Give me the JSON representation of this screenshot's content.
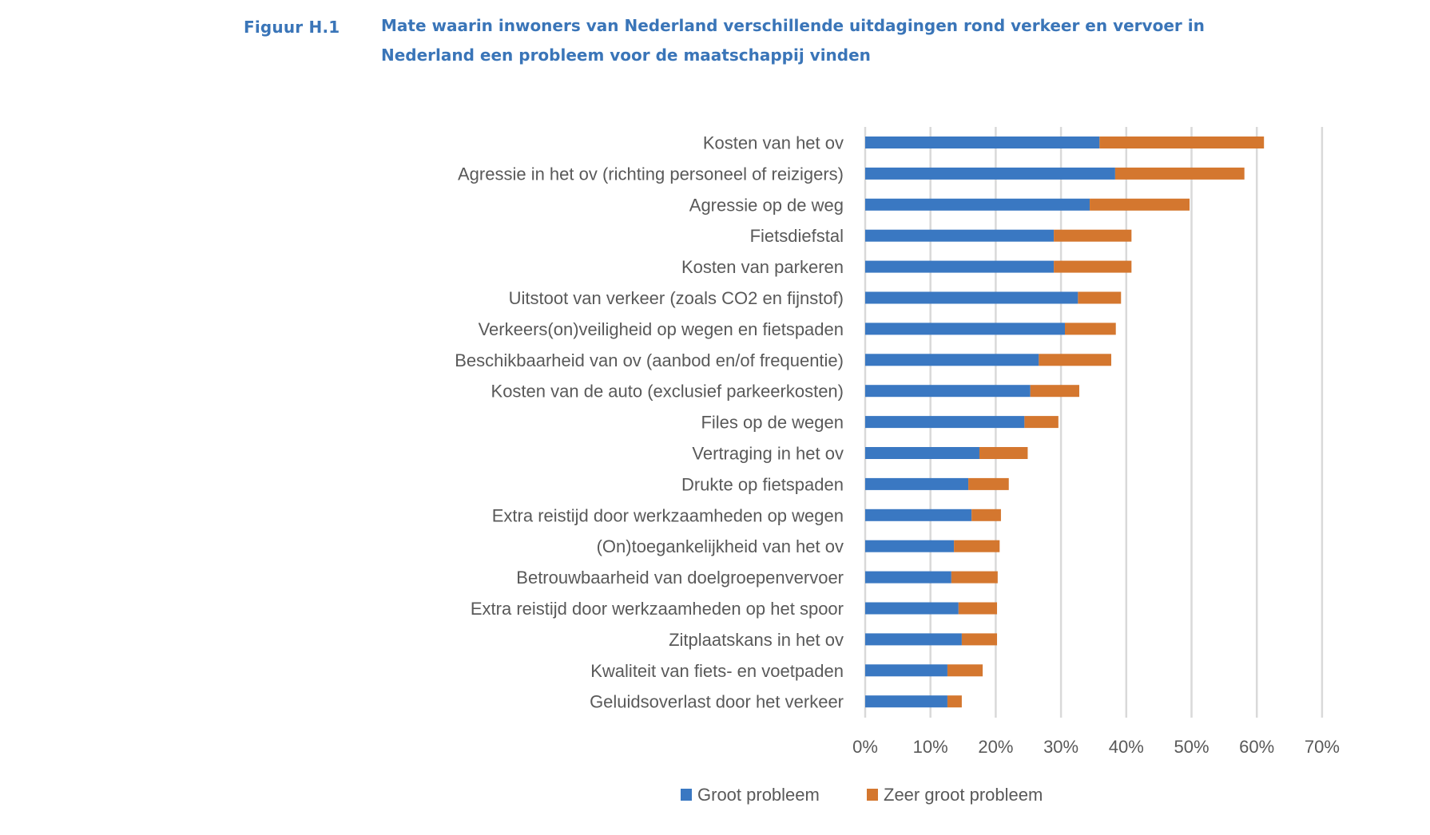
{
  "figure": {
    "number": "Figuur H.1",
    "title": "Mate waarin inwoners van Nederland verschillende uitdagingen rond verkeer en vervoer in Nederland een probleem voor de maatschappij vinden"
  },
  "chart_data": {
    "type": "bar",
    "orientation": "horizontal",
    "stacked": true,
    "title": "Mate waarin inwoners van Nederland verschillende uitdagingen rond verkeer en vervoer in Nederland een probleem voor de maatschappij vinden",
    "xlabel": "",
    "ylabel": "",
    "xlim": [
      0,
      70
    ],
    "x_unit": "%",
    "x_ticks": [
      "0%",
      "10%",
      "20%",
      "30%",
      "40%",
      "50%",
      "60%",
      "70%"
    ],
    "grid": true,
    "legend_position": "bottom",
    "categories": [
      "Kosten van het ov",
      "Agressie in het ov (richting personeel of reizigers)",
      "Agressie op de weg",
      "Fietsdiefstal",
      "Kosten van parkeren",
      "Uitstoot van verkeer (zoals CO2 en fijnstof)",
      "Verkeers(on)veiligheid op wegen en fietspaden",
      "Beschikbaarheid van ov (aanbod en/of frequentie)",
      "Kosten van de auto (exclusief parkeerkosten)",
      "Files op de wegen",
      "Vertraging in het ov",
      "Drukte op fietspaden",
      "Extra reistijd door werkzaamheden op wegen",
      "(On)toegankelijkheid van het ov",
      "Betrouwbaarheid van doelgroepenvervoer",
      "Extra reistijd door werkzaamheden op het spoor",
      "Zitplaatskans in het ov",
      "Kwaliteit van fiets- en voetpaden",
      "Geluidsoverlast door het verkeer"
    ],
    "series": [
      {
        "name": "Groot probleem",
        "color": "#3a78c2",
        "values": [
          35.9,
          38.3,
          34.4,
          28.9,
          28.9,
          32.6,
          30.6,
          26.6,
          25.3,
          24.4,
          17.5,
          15.8,
          16.3,
          13.6,
          13.2,
          14.3,
          14.8,
          12.6,
          12.6
        ]
      },
      {
        "name": "Zeer groot probleem",
        "color": "#d4772f",
        "values": [
          25.2,
          19.8,
          15.3,
          11.9,
          11.9,
          6.6,
          7.8,
          11.1,
          7.5,
          5.2,
          7.4,
          6.2,
          4.5,
          7.0,
          7.1,
          5.9,
          5.4,
          5.4,
          2.2
        ]
      }
    ]
  }
}
